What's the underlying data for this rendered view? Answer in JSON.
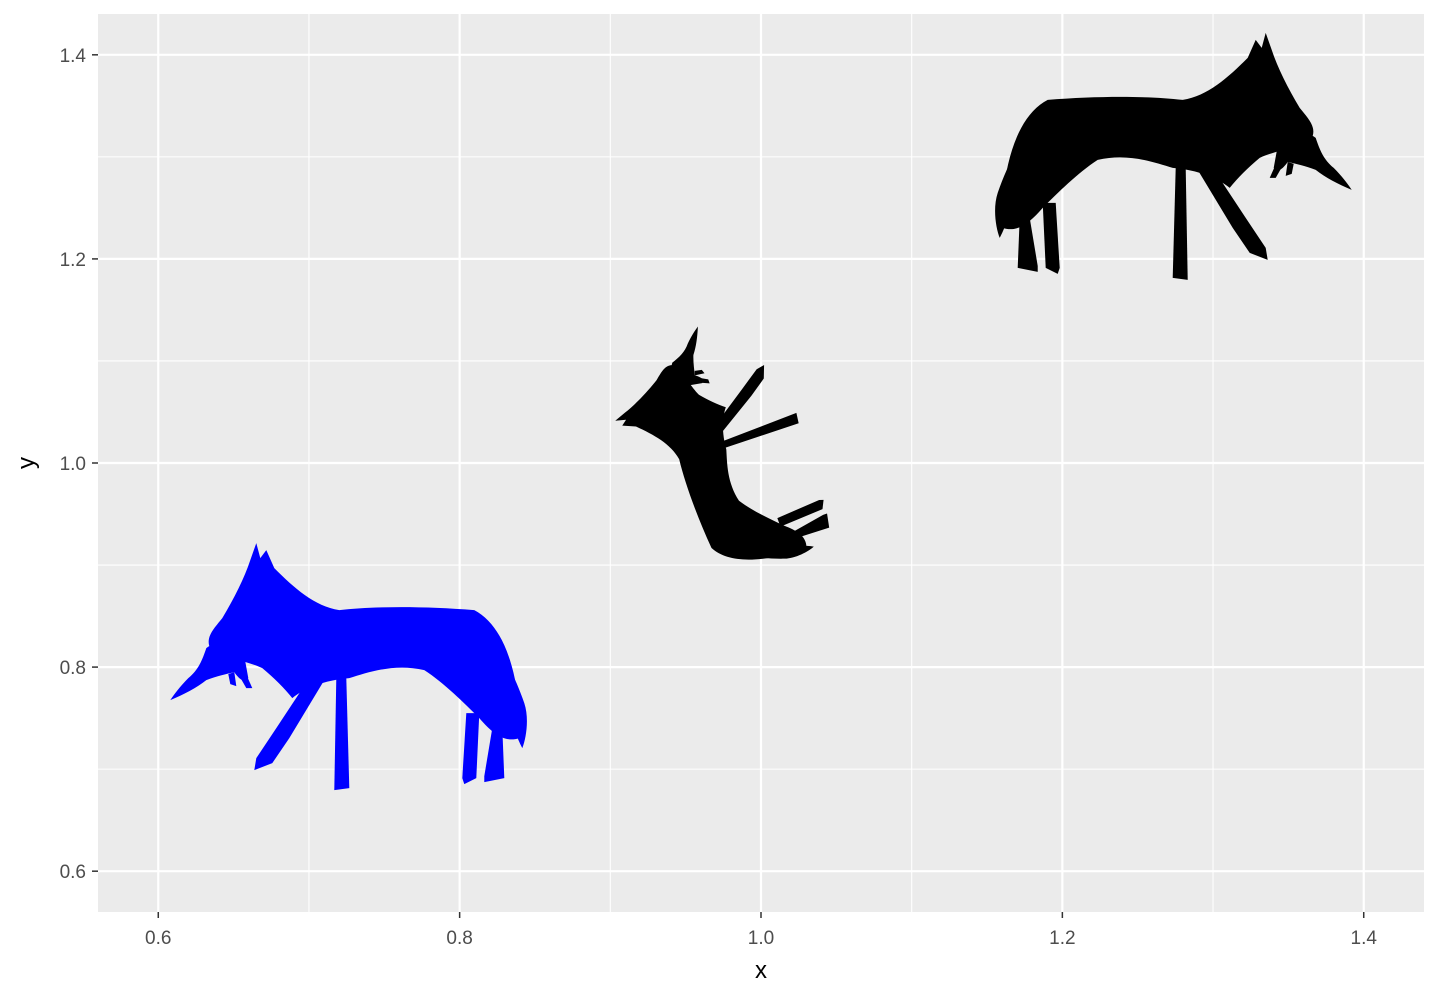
{
  "chart_data": {
    "type": "scatter",
    "marker": "silhouette-of-canid-carrying-prey",
    "xlabel": "x",
    "ylabel": "y",
    "xlim": [
      0.56,
      1.44
    ],
    "ylim": [
      0.56,
      1.44
    ],
    "x_ticks": [
      0.6,
      0.8,
      1.0,
      1.2,
      1.4
    ],
    "x_tick_labels": [
      "0.6",
      "0.8",
      "1.0",
      "1.2",
      "1.4"
    ],
    "y_ticks": [
      0.6,
      0.8,
      1.0,
      1.2,
      1.4
    ],
    "y_tick_labels": [
      "0.6",
      "0.8",
      "1.0",
      "1.2",
      "1.4"
    ],
    "grid": true,
    "background_color": "#ebebeb",
    "grid_color": "#ffffff",
    "points": [
      {
        "x": 0.75,
        "y": 0.75,
        "color": "#0000ff",
        "orientation": "facing-left",
        "scale": 1.0
      },
      {
        "x": 1.0,
        "y": 1.0,
        "color": "#000000",
        "orientation": "rotated",
        "scale": 0.7
      },
      {
        "x": 1.25,
        "y": 1.25,
        "color": "#000000",
        "orientation": "facing-right",
        "scale": 1.0
      }
    ]
  }
}
